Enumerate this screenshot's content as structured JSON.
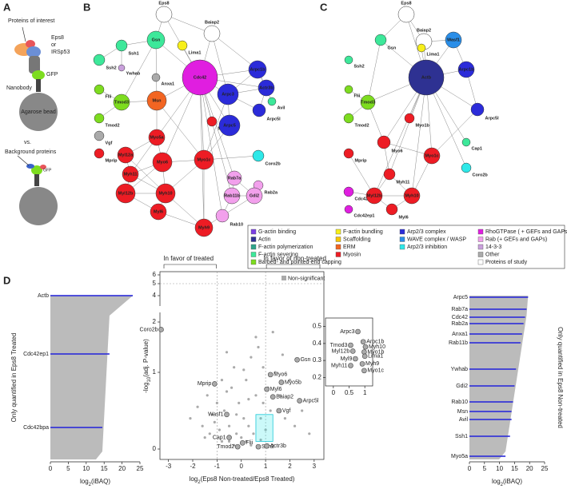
{
  "panels": {
    "a": "A",
    "b": "B",
    "c": "C",
    "d": "D"
  },
  "panel_a": {
    "labels": [
      "Proteins of interest",
      "Eps8",
      "or",
      "IRSp53",
      "GFP",
      "Nanobody",
      "Agarose bead",
      "vs.",
      "Background proteins",
      "GFP"
    ]
  },
  "legend": [
    [
      {
        "name": "G-actin binding",
        "color": "#7b3fe4"
      },
      {
        "name": "Actin",
        "color": "#2e3192"
      },
      {
        "name": "F-actin polymerization",
        "color": "#2ea58a"
      },
      {
        "name": "F-actin severing",
        "color": "#3de89a"
      },
      {
        "name": "Barbed- and pointed-end capping",
        "color": "#7ddc1f"
      }
    ],
    [
      {
        "name": "F-actin bundling",
        "color": "#f7ef1a"
      },
      {
        "name": "Scaffolding",
        "color": "#f7c600"
      },
      {
        "name": "ERM",
        "color": "#f26522"
      },
      {
        "name": "Myosin",
        "color": "#ed1c24"
      }
    ],
    [
      {
        "name": "Arp2/3 complex",
        "color": "#2b2bd9"
      },
      {
        "name": "WAVE complex / WASP",
        "color": "#2a8ee8"
      },
      {
        "name": "Arp2/3 inhibition",
        "color": "#2ee8e8"
      }
    ],
    [
      {
        "name": "RhoGTPase ( + GEFs and GAPs)",
        "color": "#e01ee0"
      },
      {
        "name": "Rab (+ GEFs and GAPs)",
        "color": "#f2a0ec"
      },
      {
        "name": "14-3-3",
        "color": "#c9a0dc"
      },
      {
        "name": "Other",
        "color": "#aaaaaa"
      },
      {
        "name": "Proteins of study",
        "color": "#ffffff"
      }
    ]
  ],
  "network_b": {
    "nodes": [
      {
        "label": "Eps8",
        "group": "Proteins of study"
      },
      {
        "label": "Baiap2",
        "group": "Proteins of study"
      },
      {
        "label": "Gsn",
        "group": "F-actin severing"
      },
      {
        "label": "Ssh1",
        "group": "F-actin severing"
      },
      {
        "label": "Lima1",
        "group": "F-actin bundling"
      },
      {
        "label": "Ssh2",
        "group": "F-actin severing"
      },
      {
        "label": "Ywhab",
        "group": "14-3-3"
      },
      {
        "label": "Anxa1",
        "group": "Other"
      },
      {
        "label": "Cdc42",
        "group": "RhoGTPase ( + GEFs and GAPs)"
      },
      {
        "label": "Arpc1b",
        "group": "Arp2/3 complex"
      },
      {
        "label": "Actr3b",
        "group": "Arp2/3 complex"
      },
      {
        "label": "Arpc3",
        "group": "Arp2/3 complex"
      },
      {
        "label": "Avil",
        "group": "F-actin severing"
      },
      {
        "label": "Arpc5l",
        "group": "Arp2/3 complex"
      },
      {
        "label": "Flii",
        "group": "Barbed- and pointed-end capping"
      },
      {
        "label": "Tmod3",
        "group": "Barbed- and pointed-end capping"
      },
      {
        "label": "Msn",
        "group": "ERM"
      },
      {
        "label": "Tmod2",
        "group": "Barbed- and pointed-end capping"
      },
      {
        "label": "Myo5b",
        "group": "Myosin"
      },
      {
        "label": "Arpc5",
        "group": "Arp2/3 complex"
      },
      {
        "label": "Vgf",
        "group": "Other"
      },
      {
        "label": "Mprip",
        "group": "Myosin"
      },
      {
        "label": "Myo5a",
        "group": "Myosin"
      },
      {
        "label": "Myo6",
        "group": "Myosin"
      },
      {
        "label": "Myo1c",
        "group": "Myosin"
      },
      {
        "label": "Myl12a",
        "group": "Myosin"
      },
      {
        "label": "Myh11",
        "group": "Myosin"
      },
      {
        "label": "Myl12b",
        "group": "Myosin"
      },
      {
        "label": "Myh10",
        "group": "Myosin"
      },
      {
        "label": "Myl6",
        "group": "Myosin"
      },
      {
        "label": "Myh9",
        "group": "Myosin"
      },
      {
        "label": "Coro2b",
        "group": "Arp2/3 inhibition"
      },
      {
        "label": "Rab7a",
        "group": "Rab (+ GEFs and GAPs)"
      },
      {
        "label": "Rab2a",
        "group": "Rab (+ GEFs and GAPs)"
      },
      {
        "label": "Rab11b",
        "group": "Rab (+ GEFs and GAPs)"
      },
      {
        "label": "Gdi2",
        "group": "Rab (+ GEFs and GAPs)"
      },
      {
        "label": "Rab10",
        "group": "Rab (+ GEFs and GAPs)"
      }
    ]
  },
  "network_c": {
    "nodes": [
      {
        "label": "Eps8",
        "group": "Proteins of study"
      },
      {
        "label": "Baiap2",
        "group": "Proteins of study"
      },
      {
        "label": "Wasf1",
        "group": "WAVE complex / WASP"
      },
      {
        "label": "Gsn",
        "group": "F-actin severing"
      },
      {
        "label": "Lima1",
        "group": "F-actin bundling"
      },
      {
        "label": "Ssh2",
        "group": "F-actin severing"
      },
      {
        "label": "Actb",
        "group": "Actin"
      },
      {
        "label": "Arpc1b",
        "group": "Arp2/3 complex"
      },
      {
        "label": "Flii",
        "group": "Barbed- and pointed-end capping"
      },
      {
        "label": "Tmod3",
        "group": "Barbed- and pointed-end capping"
      },
      {
        "label": "Tmod2",
        "group": "Barbed- and pointed-end capping"
      },
      {
        "label": "Myo1b",
        "group": "Myosin"
      },
      {
        "label": "Arpc5l",
        "group": "Arp2/3 complex"
      },
      {
        "label": "Cap1",
        "group": "F-actin severing"
      },
      {
        "label": "Myo6",
        "group": "Myosin"
      },
      {
        "label": "Myo1c",
        "group": "Myosin"
      },
      {
        "label": "Coro2b",
        "group": "Arp2/3 inhibition"
      },
      {
        "label": "Mprip",
        "group": "Myosin"
      },
      {
        "label": "Myh11",
        "group": "Myosin"
      },
      {
        "label": "Cdc42bpa",
        "group": "RhoGTPase ( + GEFs and GAPs)"
      },
      {
        "label": "Cdc42ep1",
        "group": "RhoGTPase ( + GEFs and GAPs)"
      },
      {
        "label": "Myl12b",
        "group": "Myosin"
      },
      {
        "label": "Myh10",
        "group": "Myosin"
      },
      {
        "label": "Myl6",
        "group": "Myosin"
      }
    ]
  },
  "chart_data": [
    {
      "type": "bar",
      "ylabel": "Only quantified in Eps8 Treated",
      "xlabel": {
        "pre": "log",
        "sub": "2",
        "post": "(iBAQ)"
      },
      "categories": [
        "Actb",
        "Cdc42ep1",
        "Cdc42bpa"
      ],
      "values": [
        23,
        16.5,
        14.5
      ],
      "color": "#2b2bd9",
      "xlim": [
        0,
        25
      ],
      "xticks": [
        0,
        5,
        10,
        15,
        20,
        25
      ]
    },
    {
      "type": "scatter",
      "annotations": [
        "In favor of treated",
        "In favor of non-treated"
      ],
      "xlabel": {
        "pre": "log",
        "sub": "2",
        "post": "(Eps8 Non-treated/Eps8 Treated)"
      },
      "ylabel": {
        "pre": "-log",
        "sub": "10",
        "post": "(adj. P-value)"
      },
      "xlim": [
        -3.35,
        3.4
      ],
      "xticks": [
        -3,
        -2,
        -1,
        0,
        1,
        2,
        3
      ],
      "ylim": [
        -0.14,
        6.36
      ],
      "yticks": [
        0,
        1,
        2,
        4,
        5,
        6
      ],
      "thresholds": {
        "x": [
          -1,
          1
        ],
        "y": 5
      },
      "zoom_region": {
        "x": [
          0.6,
          1.3
        ],
        "y": [
          0.1,
          0.45
        ]
      },
      "series": [
        {
          "name": "Non-significant",
          "color": "#aaaaaa",
          "x": [
            -2.1,
            -1.8,
            -1.6,
            -1.4,
            -1.3,
            -1.2,
            -1.1,
            -1,
            -0.9,
            -0.8,
            -0.7,
            -0.6,
            -0.5,
            -0.4,
            -0.3,
            -0.2,
            -0.1,
            0,
            0.1,
            0.2,
            0.3,
            0.4,
            0.5,
            0.6,
            0.7,
            0.8,
            0.9,
            1,
            1.1,
            1.2,
            1.4,
            1.6,
            1.8,
            2,
            2.2,
            2.5,
            2.8,
            -0.5,
            -0.3,
            0.2,
            0.4,
            0.6,
            -0.8,
            -1.5,
            1.3,
            0.9,
            -0.2,
            0.1,
            0.3,
            1.7,
            -0.6,
            0.8
          ],
          "values": [
            0.4,
            0.55,
            0.3,
            0.7,
            0.2,
            0.45,
            0.35,
            0.6,
            0.25,
            0.9,
            0.5,
            1.4,
            0.3,
            0.8,
            1.1,
            0.2,
            0.6,
            0.15,
            0.4,
            0.9,
            0.3,
            1.3,
            0.2,
            0.7,
            1.5,
            0.4,
            0.6,
            0.25,
            0.8,
            0.5,
            1,
            0.7,
            0.4,
            0.9,
            0.3,
            0.5,
            0.2,
            0.1,
            0.05,
            0.1,
            0.05,
            1.7,
            0.1,
            0.15,
            1.8,
            1.1,
            0.45,
            1.05,
            0.65,
            1.35,
            0.75,
            0.12
          ]
        }
      ],
      "points": {
        "labels": [
          "Coro2b",
          "Mprip",
          "Wasf1",
          "Cap1",
          "Flii",
          "Tmod2",
          "Ssh2",
          "Actr3b",
          "Gsn",
          "Myo6",
          "Myo5b",
          "Myl6",
          "Baiap2",
          "Arpc5l",
          "Vgf"
        ],
        "x": [
          -3.3,
          -1.1,
          -0.6,
          -0.5,
          0.05,
          -0.15,
          0.7,
          1.05,
          2.3,
          1.2,
          1.65,
          1.05,
          1.3,
          2.4,
          1.55
        ],
        "y": [
          1.85,
          0.85,
          0.45,
          0.15,
          0.08,
          0.03,
          0.03,
          0.04,
          1.25,
          0.97,
          0.87,
          0.78,
          0.68,
          0.63,
          0.5
        ]
      }
    },
    {
      "type": "scatter",
      "xlim": [
        -0.25,
        1.25
      ],
      "xticks": [
        0,
        0.5,
        1
      ],
      "ylim": [
        0.15,
        0.55
      ],
      "yticks": [
        0.2,
        0.3,
        0.4,
        0.5
      ],
      "points": {
        "labels": [
          "Arpc3",
          "Arpc1b",
          "Tmod3",
          "Myh10",
          "Myl12b",
          "Myo1b",
          "Lima1",
          "Myl9",
          "Myh11",
          "Myh9",
          "Myo1c"
        ],
        "x": [
          0.78,
          0.95,
          0.55,
          1.02,
          0.62,
          0.98,
          1.0,
          0.7,
          0.55,
          0.92,
          0.98
        ],
        "y": [
          0.47,
          0.41,
          0.39,
          0.38,
          0.355,
          0.35,
          0.325,
          0.31,
          0.27,
          0.28,
          0.24
        ]
      }
    },
    {
      "type": "bar",
      "ylabel": "Only quantified in Eps8 Non-treated",
      "xlabel": {
        "pre": "log",
        "sub": "2",
        "post": "(iBAQ)"
      },
      "categories": [
        "Arpc5",
        "Rab7a",
        "Cdc42",
        "Rab2a",
        "Anxa1",
        "Rab11b",
        "Ywhab",
        "Gdi2",
        "Rab10",
        "Msn",
        "Avil",
        "Ssh1",
        "Myo5a"
      ],
      "values": [
        19.5,
        19,
        18.5,
        18,
        17.5,
        17,
        15.5,
        15,
        14.5,
        14,
        14,
        13.5,
        12
      ],
      "color": "#2b2bd9",
      "xlim": [
        0,
        25
      ],
      "xticks": [
        0,
        5,
        10,
        15,
        20,
        25
      ]
    }
  ]
}
